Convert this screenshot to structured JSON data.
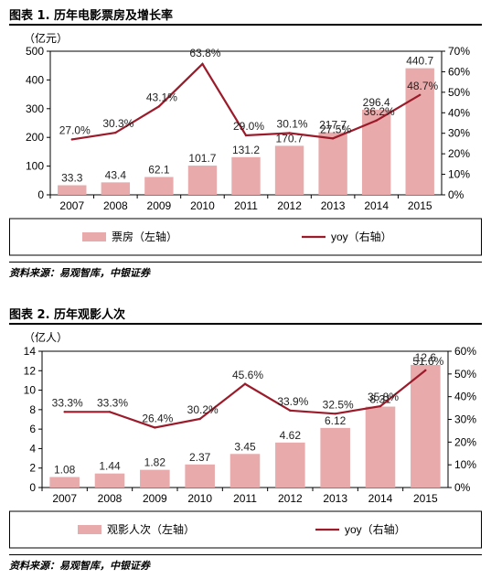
{
  "chart_data": [
    {
      "type": "bar",
      "title": "图表 1. 历年电影票房及增长率",
      "left_unit": "（亿元）",
      "categories": [
        "2007",
        "2008",
        "2009",
        "2010",
        "2011",
        "2012",
        "2013",
        "2014",
        "2015"
      ],
      "series": [
        {
          "name": "票房（左轴）",
          "type": "bar",
          "axis": "left",
          "values": [
            33.3,
            43.4,
            62.1,
            101.7,
            131.2,
            170.7,
            217.7,
            296.4,
            440.7
          ],
          "labels": [
            "33.3",
            "43.4",
            "62.1",
            "101.7",
            "131.2",
            "170.7",
            "217.7",
            "296.4",
            "440.7"
          ],
          "color": "#e8aaaa"
        },
        {
          "name": "yoy（右轴）",
          "type": "line",
          "axis": "right",
          "values": [
            27.0,
            30.3,
            43.1,
            63.8,
            29.0,
            30.1,
            27.5,
            36.2,
            48.7
          ],
          "labels": [
            "27.0%",
            "30.3%",
            "43.1%",
            "63.8%",
            "29.0%",
            "30.1%",
            "27.5%",
            "36.2%",
            "48.7%"
          ],
          "color": "#9b1b2a"
        }
      ],
      "ylim_left": [
        0,
        500
      ],
      "yticks_left": [
        "0",
        "100",
        "200",
        "300",
        "400",
        "500"
      ],
      "ylim_right": [
        0,
        70
      ],
      "yticks_right": [
        "0%",
        "10%",
        "20%",
        "30%",
        "40%",
        "50%",
        "60%",
        "70%"
      ],
      "grid": false,
      "legend": "bottom",
      "source": "资料来源：易观智库，中银证券"
    },
    {
      "type": "bar",
      "title": "图表 2. 历年观影人次",
      "left_unit": "（亿人）",
      "categories": [
        "2007",
        "2008",
        "2009",
        "2010",
        "2011",
        "2012",
        "2013",
        "2014",
        "2015"
      ],
      "series": [
        {
          "name": "观影人次（左轴）",
          "type": "bar",
          "axis": "left",
          "values": [
            1.08,
            1.44,
            1.82,
            2.37,
            3.45,
            4.62,
            6.12,
            8.31,
            12.6
          ],
          "labels": [
            "1.08",
            "1.44",
            "1.82",
            "2.37",
            "3.45",
            "4.62",
            "6.12",
            "8.31",
            "12.6"
          ],
          "color": "#e8aaaa"
        },
        {
          "name": "yoy（右轴）",
          "type": "line",
          "axis": "right",
          "values": [
            33.3,
            33.3,
            26.4,
            30.2,
            45.6,
            33.9,
            32.5,
            35.8,
            51.6
          ],
          "labels": [
            "33.3%",
            "33.3%",
            "26.4%",
            "30.2%",
            "45.6%",
            "33.9%",
            "32.5%",
            "35.8%",
            "51.6%"
          ],
          "color": "#9b1b2a"
        }
      ],
      "ylim_left": [
        0,
        14
      ],
      "yticks_left": [
        "0",
        "2",
        "4",
        "6",
        "8",
        "10",
        "12",
        "14"
      ],
      "ylim_right": [
        0,
        60
      ],
      "yticks_right": [
        "0%",
        "10%",
        "20%",
        "30%",
        "40%",
        "50%",
        "60%"
      ],
      "grid": false,
      "legend": "bottom",
      "source": "资料来源：易观智库，中银证券"
    }
  ]
}
